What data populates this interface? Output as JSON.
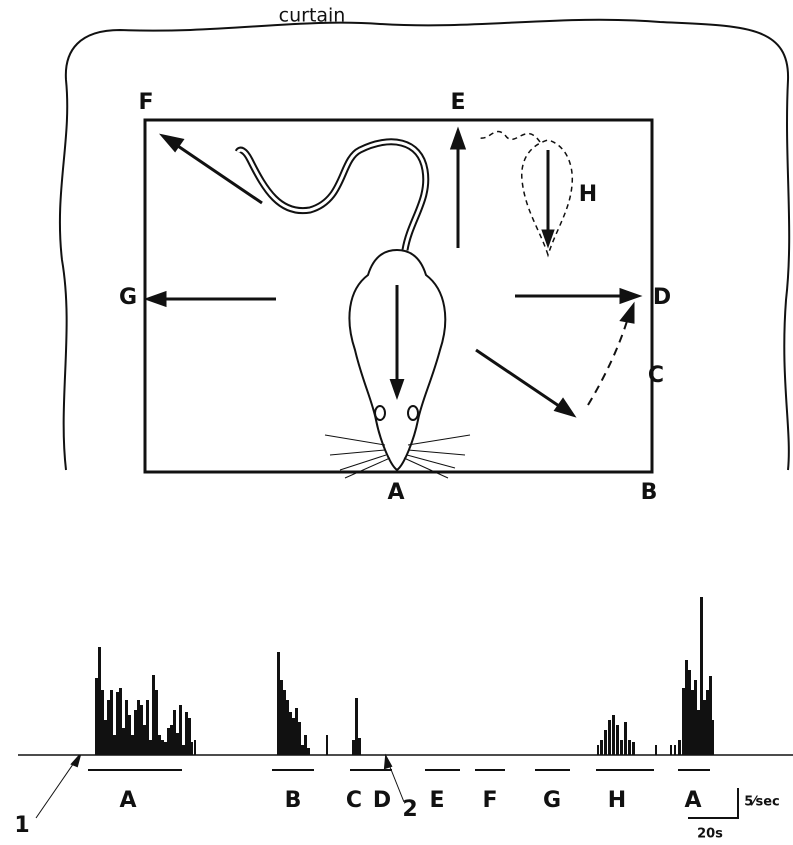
{
  "arena": {
    "curtain": "curtain",
    "positions": {
      "F": "F",
      "E": "E",
      "H": "H",
      "G": "G",
      "D": "D",
      "C": "C",
      "A": "A",
      "B": "B"
    }
  },
  "record": {
    "markers": [
      "1",
      "2"
    ],
    "segments": [
      "A",
      "B",
      "C",
      "D",
      "E",
      "F",
      "G",
      "H",
      "A"
    ],
    "scale_rate": "5⁄sec",
    "scale_time": "20s"
  }
}
